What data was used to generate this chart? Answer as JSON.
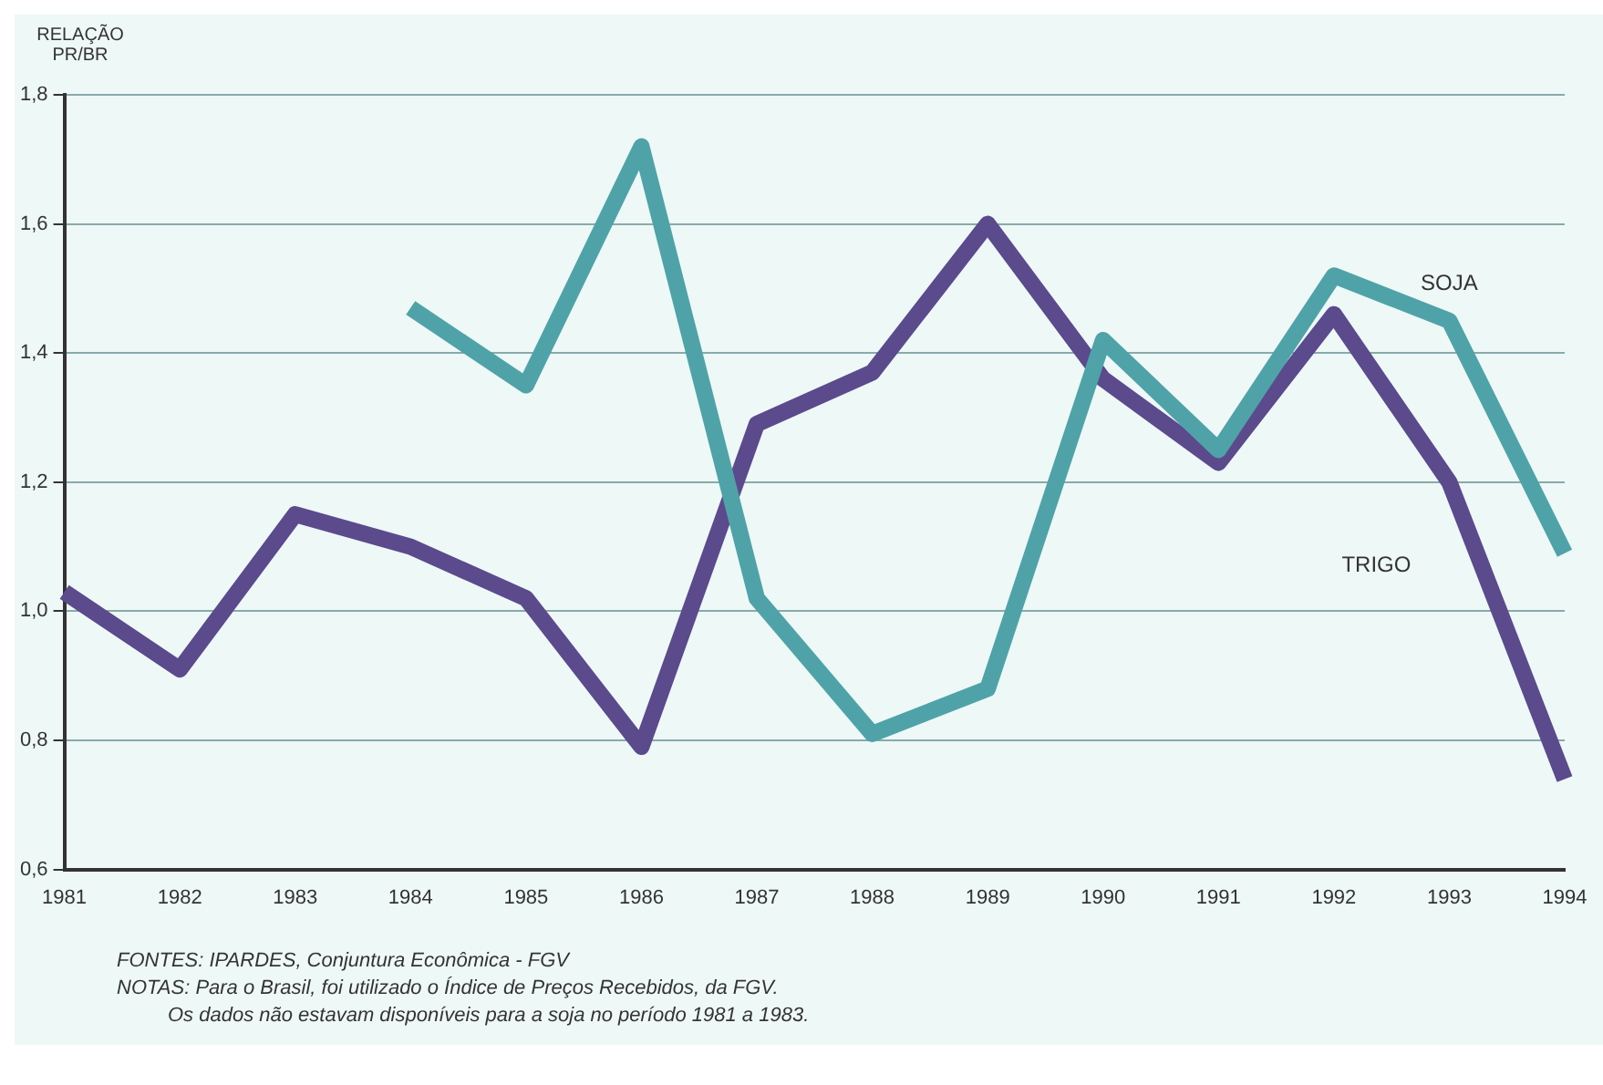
{
  "chart_data": {
    "type": "line",
    "ylabel": "RELAÇÃO PR/BR",
    "categories": [
      "1981",
      "1982",
      "1983",
      "1984",
      "1985",
      "1986",
      "1987",
      "1988",
      "1989",
      "1990",
      "1991",
      "1992",
      "1993",
      "1994"
    ],
    "series": [
      {
        "name": "SOJA",
        "color": "#4fa3a8",
        "values": [
          null,
          null,
          null,
          1.47,
          1.35,
          1.72,
          1.02,
          0.81,
          0.88,
          1.42,
          1.25,
          1.52,
          1.45,
          1.09
        ]
      },
      {
        "name": "TRIGO",
        "color": "#5b4a8c",
        "values": [
          1.03,
          0.91,
          1.15,
          1.1,
          1.02,
          0.79,
          1.29,
          1.37,
          1.6,
          1.36,
          1.23,
          1.46,
          1.2,
          0.74
        ]
      }
    ],
    "ylim": [
      0.6,
      1.8
    ],
    "yticks": [
      {
        "value": 0.6,
        "label": "0,6"
      },
      {
        "value": 0.8,
        "label": "0,8"
      },
      {
        "value": 1.0,
        "label": "1,0"
      },
      {
        "value": 1.2,
        "label": "1,2"
      },
      {
        "value": 1.4,
        "label": "1,4"
      },
      {
        "value": 1.6,
        "label": "1,6"
      },
      {
        "value": 1.8,
        "label": "1,8"
      }
    ],
    "grid": "y",
    "legend": false,
    "marker": "none",
    "line_style": "solid",
    "annotations": [
      "FONTES: IPARDES, Conjuntura Econômica - FGV",
      "NOTAS: Para o Brasil, foi utilizado o Índice de Preços Recebidos, da FGV.",
      "Os dados não estavam disponíveis para a soja no período 1981 a 1983."
    ]
  }
}
